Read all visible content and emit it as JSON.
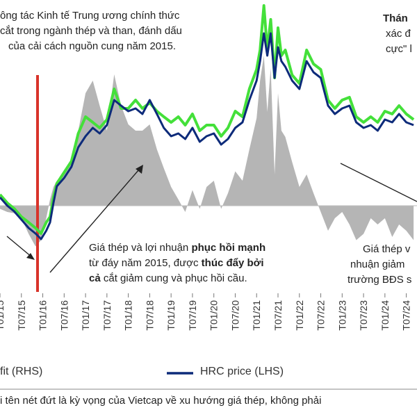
{
  "chart_data": {
    "type": "line",
    "annotations": {
      "top_left": [
        "ông tác Kinh tế Trung ương chính thức",
        "cắt trong ngành thép và than, đánh dấu",
        "của cải cách nguồn cung năm 2015."
      ],
      "top_right": [
        "Thán",
        "xác đ",
        "cực\" l"
      ],
      "middle": {
        "line1_pre": "Giá thép và lợi nhuận ",
        "line1_bold": "phục hồi mạnh",
        "line2_pre": "từ đáy năm 2015, được ",
        "line2_bold": "thúc đẩy bởi",
        "line3_bold": "cả",
        "line3_post": " cắt giảm cung và phục hồi cầu."
      },
      "right": [
        "Giá thép v",
        "nhuận giảm",
        "trường BĐS s"
      ]
    },
    "x_ticks": [
      "T01/15",
      "T07/15",
      "T01/16",
      "T07/16",
      "T01/17",
      "T07/17",
      "T01/18",
      "T07/18",
      "T01/19",
      "T07/19",
      "T01/20",
      "T07/20",
      "T01/21",
      "T07/21",
      "T01/22",
      "T07/22",
      "T01/23",
      "T07/23",
      "T01/24",
      "T07/24"
    ],
    "legend": [
      {
        "label": "fit (RHS)",
        "color": "#b5b5b5"
      },
      {
        "label": "HRC price (LHS)",
        "color": "#0d2b7a"
      }
    ],
    "footnote": "i tên nét đứt là kỳ vọng của Vietcap về xu hướng giá thép, không phải",
    "colors": {
      "hrc": "#0d2b7a",
      "green_series": "#44e03a",
      "profit_area": "#b5b5b5",
      "marker": "#d8332a",
      "zero": "#bdbdbd"
    },
    "x": [
      2015.0,
      2015.17,
      2015.33,
      2015.5,
      2015.67,
      2015.83,
      2015.96,
      2016.08,
      2016.17,
      2016.25,
      2016.33,
      2016.5,
      2016.67,
      2016.83,
      2017.0,
      2017.17,
      2017.33,
      2017.5,
      2017.67,
      2017.83,
      2018.0,
      2018.17,
      2018.33,
      2018.5,
      2018.67,
      2018.83,
      2019.0,
      2019.17,
      2019.33,
      2019.5,
      2019.67,
      2019.83,
      2020.0,
      2020.17,
      2020.33,
      2020.5,
      2020.67,
      2020.83,
      2021.0,
      2021.08,
      2021.17,
      2021.25,
      2021.33,
      2021.42,
      2021.5,
      2021.58,
      2021.67,
      2021.83,
      2022.0,
      2022.17,
      2022.33,
      2022.5,
      2022.67,
      2022.83,
      2023.0,
      2023.17,
      2023.33,
      2023.5,
      2023.67,
      2023.83,
      2024.0,
      2024.17,
      2024.33,
      2024.5,
      2024.67
    ],
    "hrc_price": [
      345,
      330,
      320,
      305,
      290,
      280,
      270,
      285,
      300,
      335,
      365,
      380,
      400,
      435,
      455,
      470,
      460,
      475,
      520,
      510,
      500,
      505,
      495,
      520,
      495,
      470,
      455,
      460,
      450,
      470,
      445,
      455,
      460,
      440,
      450,
      470,
      480,
      520,
      555,
      590,
      640,
      600,
      640,
      560,
      615,
      590,
      580,
      555,
      540,
      590,
      570,
      560,
      510,
      495,
      505,
      510,
      480,
      470,
      475,
      465,
      485,
      480,
      495,
      480,
      475
    ],
    "green_series": [
      350,
      335,
      325,
      310,
      300,
      290,
      280,
      300,
      310,
      345,
      370,
      390,
      410,
      460,
      490,
      480,
      470,
      485,
      540,
      505,
      505,
      520,
      505,
      515,
      500,
      490,
      480,
      490,
      475,
      495,
      465,
      475,
      475,
      455,
      470,
      500,
      490,
      540,
      575,
      610,
      690,
      610,
      665,
      560,
      650,
      600,
      610,
      565,
      550,
      610,
      585,
      575,
      520,
      505,
      520,
      525,
      490,
      480,
      490,
      480,
      500,
      495,
      510,
      495,
      485
    ],
    "profit_rhs": [
      -0.05,
      -0.1,
      -0.12,
      -0.2,
      -0.45,
      -0.65,
      -0.55,
      -0.2,
      0.1,
      0.3,
      0.4,
      0.5,
      0.75,
      1.2,
      1.8,
      2.0,
      1.6,
      1.2,
      2.1,
      1.6,
      1.3,
      1.2,
      1.2,
      1.3,
      0.9,
      0.6,
      0.3,
      0.1,
      -0.1,
      0.25,
      -0.05,
      0.3,
      0.4,
      -0.05,
      0.2,
      0.55,
      0.4,
      0.9,
      1.4,
      2.0,
      2.4,
      1.5,
      2.2,
      0.5,
      1.8,
      1.2,
      1.1,
      0.7,
      0.3,
      0.5,
      0.2,
      -0.1,
      -0.4,
      -0.2,
      -0.1,
      -0.3,
      -0.55,
      -0.45,
      -0.2,
      -0.3,
      -0.2,
      -0.5,
      -0.3,
      -0.4,
      -0.55
    ]
  }
}
